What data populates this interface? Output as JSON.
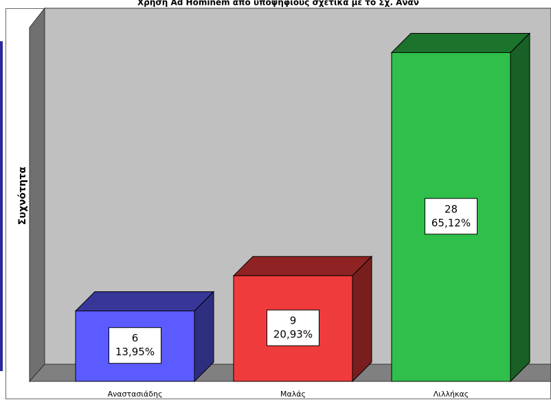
{
  "chart_data": {
    "type": "bar3d",
    "title": "Χρήση Ad Hominem από υποψηφίους σχετικά με το Σχ. Ανάν",
    "y_label": "Συχνότητα",
    "categories": [
      "Αναστασιάδης",
      "Μαλάς",
      "Λιλλήκας"
    ],
    "values": [
      6,
      9,
      28
    ],
    "percent_values": [
      13.95,
      20.93,
      65.12
    ],
    "percent_labels": [
      "13,95%",
      "20,93%",
      "65,12%"
    ],
    "colors": [
      "#5b5bff",
      "#ef3b3b",
      "#2fbf4a"
    ],
    "ylim": [
      0,
      31.6
    ]
  }
}
